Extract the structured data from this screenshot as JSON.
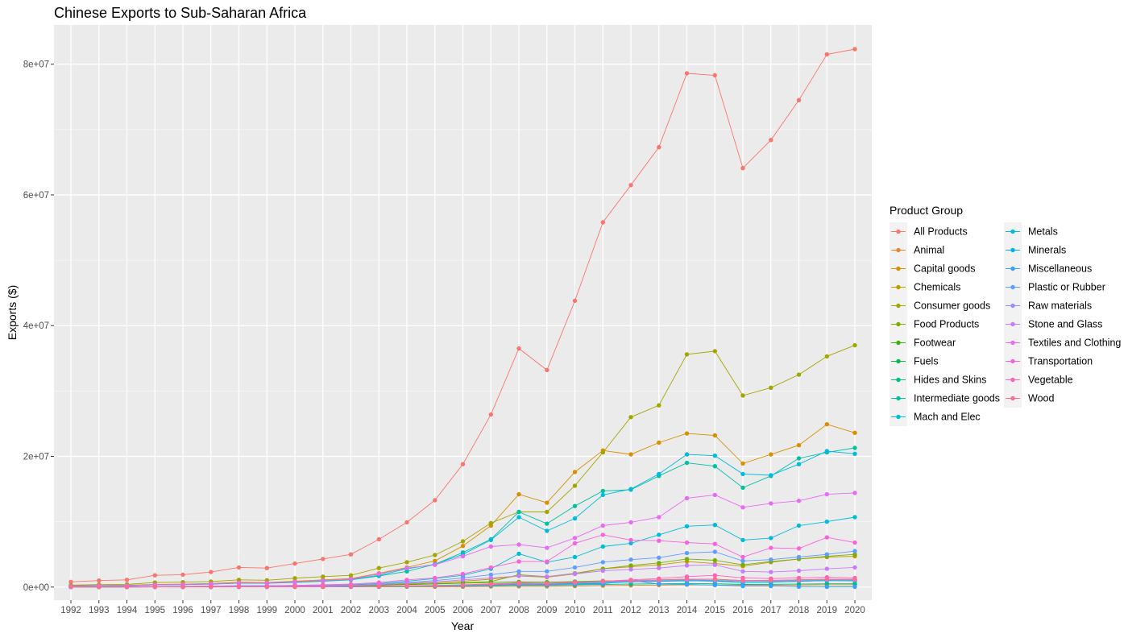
{
  "chart_data": {
    "type": "line",
    "title": "Chinese Exports to Sub-Saharan Africa",
    "xlabel": "Year",
    "ylabel": "Exports ($)",
    "ylim": [
      -2000000,
      86000000
    ],
    "y_ticks": [
      0,
      20000000,
      40000000,
      60000000,
      80000000
    ],
    "y_tick_labels": [
      "0e+00",
      "2e+07",
      "4e+07",
      "6e+07",
      "8e+07"
    ],
    "grid": true,
    "legend_title": "Product Group",
    "legend_position": "right",
    "x": [
      "1992",
      "1993",
      "1994",
      "1995",
      "1996",
      "1997",
      "1998",
      "1999",
      "2000",
      "2001",
      "2002",
      "2003",
      "2004",
      "2005",
      "2006",
      "2007",
      "2008",
      "2009",
      "2010",
      "2011",
      "2012",
      "2013",
      "2014",
      "2015",
      "2016",
      "2017",
      "2018",
      "2019",
      "2020"
    ],
    "series": [
      {
        "name": "All Products",
        "color": "#F8766D",
        "values": [
          800000,
          1000000,
          1100000,
          1800000,
          1900000,
          2300000,
          3000000,
          2900000,
          3600000,
          4300000,
          5000000,
          7300000,
          9900000,
          13300000,
          18800000,
          26400000,
          36500000,
          33200000,
          43800000,
          55800000,
          61500000,
          67300000,
          78600000,
          78300000,
          64100000,
          68400000,
          74500000,
          81500000,
          82300000
        ]
      },
      {
        "name": "Animal",
        "color": "#EA8331",
        "values": [
          20000,
          20000,
          20000,
          20000,
          20000,
          20000,
          20000,
          20000,
          20000,
          20000,
          20000,
          30000,
          40000,
          50000,
          60000,
          80000,
          100000,
          100000,
          150000,
          200000,
          250000,
          300000,
          350000,
          300000,
          250000,
          250000,
          300000,
          350000,
          350000
        ]
      },
      {
        "name": "Capital goods",
        "color": "#D89000",
        "values": [
          200000,
          250000,
          280000,
          400000,
          450000,
          550000,
          750000,
          700000,
          900000,
          1100000,
          1300000,
          2100000,
          3000000,
          4000000,
          6300000,
          9400000,
          14200000,
          12900000,
          17600000,
          20900000,
          20300000,
          22100000,
          23500000,
          23200000,
          18900000,
          20300000,
          21700000,
          24900000,
          23600000
        ]
      },
      {
        "name": "Chemicals",
        "color": "#C09B00",
        "values": [
          50000,
          60000,
          70000,
          90000,
          100000,
          120000,
          150000,
          150000,
          180000,
          220000,
          250000,
          350000,
          500000,
          650000,
          900000,
          1200000,
          1700000,
          1500000,
          2000000,
          2800000,
          3100000,
          3400000,
          3900000,
          3600000,
          3200000,
          3800000,
          4300000,
          4600000,
          4700000
        ]
      },
      {
        "name": "Consumer goods",
        "color": "#A3A500",
        "values": [
          300000,
          380000,
          420000,
          700000,
          750000,
          850000,
          1100000,
          1050000,
          1350000,
          1600000,
          1800000,
          2900000,
          3800000,
          4900000,
          7000000,
          9800000,
          11500000,
          11500000,
          15500000,
          20600000,
          26000000,
          27800000,
          35600000,
          36100000,
          29300000,
          30500000,
          32500000,
          35300000,
          37000000
        ]
      },
      {
        "name": "Food Products",
        "color": "#7CAE00",
        "values": [
          50000,
          60000,
          70000,
          90000,
          100000,
          120000,
          150000,
          150000,
          170000,
          200000,
          230000,
          300000,
          400000,
          500000,
          650000,
          850000,
          1900000,
          1600000,
          2100000,
          2800000,
          3300000,
          3700000,
          4300000,
          4100000,
          3400000,
          3900000,
          4300000,
          4700000,
          5000000
        ]
      },
      {
        "name": "Footwear",
        "color": "#39B600",
        "values": [
          30000,
          40000,
          50000,
          70000,
          80000,
          100000,
          120000,
          120000,
          140000,
          170000,
          200000,
          280000,
          380000,
          480000,
          600000,
          700000,
          800000,
          750000,
          850000,
          950000,
          1000000,
          1100000,
          1200000,
          1200000,
          1000000,
          1000000,
          1100000,
          1200000,
          1100000
        ]
      },
      {
        "name": "Fuels",
        "color": "#00BB4E",
        "values": [
          10000,
          10000,
          10000,
          20000,
          20000,
          20000,
          30000,
          30000,
          40000,
          50000,
          60000,
          80000,
          120000,
          180000,
          250000,
          350000,
          500000,
          500000,
          600000,
          750000,
          850000,
          900000,
          950000,
          1000000,
          700000,
          750000,
          900000,
          1000000,
          950000
        ]
      },
      {
        "name": "Hides and Skins",
        "color": "#00BF7D",
        "values": [
          10000,
          10000,
          10000,
          20000,
          20000,
          20000,
          30000,
          30000,
          40000,
          50000,
          60000,
          80000,
          100000,
          130000,
          170000,
          220000,
          280000,
          270000,
          330000,
          400000,
          450000,
          500000,
          550000,
          500000,
          400000,
          420000,
          450000,
          500000,
          500000
        ]
      },
      {
        "name": "Intermediate goods",
        "color": "#00C1A3",
        "values": [
          150000,
          180000,
          200000,
          350000,
          380000,
          450000,
          600000,
          580000,
          700000,
          900000,
          1100000,
          1700000,
          2400000,
          3500000,
          5300000,
          7300000,
          11500000,
          9700000,
          12400000,
          14700000,
          14900000,
          17000000,
          19000000,
          18500000,
          15200000,
          17000000,
          19700000,
          20600000,
          21300000
        ]
      },
      {
        "name": "Mach and Elec",
        "color": "#00BAE0",
        "values": [
          150000,
          180000,
          200000,
          330000,
          370000,
          450000,
          600000,
          600000,
          750000,
          950000,
          1150000,
          1800000,
          2800000,
          3500000,
          5000000,
          7200000,
          10700000,
          8600000,
          10500000,
          14100000,
          15000000,
          17300000,
          20300000,
          20100000,
          17300000,
          17100000,
          18800000,
          20800000,
          20400000
        ]
      },
      {
        "name": "Metals",
        "color": "#00BCD8",
        "values": [
          50000,
          60000,
          70000,
          100000,
          120000,
          150000,
          200000,
          200000,
          250000,
          300000,
          350000,
          550000,
          900000,
          1300000,
          1800000,
          2800000,
          5100000,
          3800000,
          4600000,
          6200000,
          6700000,
          8000000,
          9300000,
          9500000,
          7200000,
          7500000,
          9400000,
          10000000,
          10700000
        ]
      },
      {
        "name": "Minerals",
        "color": "#00B0F6",
        "values": [
          10000,
          10000,
          10000,
          20000,
          20000,
          30000,
          30000,
          30000,
          40000,
          50000,
          60000,
          100000,
          150000,
          200000,
          300000,
          400000,
          500000,
          450000,
          500000,
          600000,
          800000,
          900000,
          1000000,
          900000,
          700000,
          800000,
          900000,
          1000000,
          1000000
        ]
      },
      {
        "name": "Miscellaneous",
        "color": "#35A2FF",
        "values": [
          5000,
          5000,
          5000,
          10000,
          10000,
          10000,
          20000,
          20000,
          30000,
          40000,
          50000,
          80000,
          120000,
          160000,
          220000,
          300000,
          380000,
          350000,
          450000,
          500000,
          1000000,
          450000,
          400000,
          300000,
          150000,
          150000,
          50000,
          30000,
          30000
        ]
      },
      {
        "name": "Plastic or Rubber",
        "color": "#619CFF",
        "values": [
          40000,
          50000,
          60000,
          80000,
          90000,
          110000,
          150000,
          150000,
          180000,
          230000,
          280000,
          450000,
          700000,
          1000000,
          1400000,
          1900000,
          2400000,
          2400000,
          3000000,
          3800000,
          4200000,
          4500000,
          5200000,
          5400000,
          4000000,
          4200000,
          4600000,
          5000000,
          5500000
        ]
      },
      {
        "name": "Raw materials",
        "color": "#9590FF",
        "values": [
          20000,
          20000,
          20000,
          30000,
          30000,
          40000,
          50000,
          50000,
          60000,
          70000,
          80000,
          120000,
          170000,
          230000,
          300000,
          400000,
          550000,
          500000,
          650000,
          800000,
          900000,
          1000000,
          1100000,
          1050000,
          900000,
          950000,
          1000000,
          1100000,
          1100000
        ]
      },
      {
        "name": "Stone and Glass",
        "color": "#C77CFF",
        "values": [
          30000,
          40000,
          50000,
          70000,
          80000,
          100000,
          130000,
          130000,
          160000,
          200000,
          250000,
          400000,
          600000,
          800000,
          1100000,
          1400000,
          1700000,
          1600000,
          2000000,
          2500000,
          2700000,
          2900000,
          3300000,
          3400000,
          2400000,
          2300000,
          2500000,
          2800000,
          3000000
        ]
      },
      {
        "name": "Textiles and Clothing",
        "color": "#E76BF3",
        "values": [
          150000,
          200000,
          220000,
          350000,
          400000,
          500000,
          650000,
          650000,
          800000,
          1000000,
          1200000,
          2000000,
          2900000,
          3400000,
          4700000,
          6200000,
          6500000,
          6000000,
          7500000,
          9400000,
          9900000,
          10700000,
          13600000,
          14100000,
          12200000,
          12800000,
          13200000,
          14200000,
          14400000
        ]
      },
      {
        "name": "Transportation",
        "color": "#FA62DB",
        "values": [
          40000,
          50000,
          60000,
          90000,
          100000,
          130000,
          180000,
          180000,
          250000,
          350000,
          450000,
          700000,
          1100000,
          1400000,
          2000000,
          3000000,
          3900000,
          3900000,
          6700000,
          8000000,
          7200000,
          7100000,
          6800000,
          6600000,
          4600000,
          6000000,
          5900000,
          7600000,
          6800000
        ]
      },
      {
        "name": "Vegetable",
        "color": "#FF62BC",
        "values": [
          20000,
          20000,
          20000,
          30000,
          30000,
          40000,
          50000,
          50000,
          60000,
          70000,
          80000,
          120000,
          170000,
          230000,
          300000,
          400000,
          550000,
          500000,
          700000,
          900000,
          1100000,
          1300000,
          1600000,
          1800000,
          1400000,
          1300000,
          1400000,
          1500000,
          1400000
        ]
      },
      {
        "name": "Wood",
        "color": "#FF6C91",
        "values": [
          20000,
          20000,
          20000,
          30000,
          30000,
          40000,
          50000,
          50000,
          60000,
          70000,
          90000,
          130000,
          180000,
          250000,
          350000,
          500000,
          650000,
          600000,
          750000,
          900000,
          1000000,
          1100000,
          1200000,
          1200000,
          1000000,
          1050000,
          1100000,
          1200000,
          1200000
        ]
      }
    ]
  }
}
